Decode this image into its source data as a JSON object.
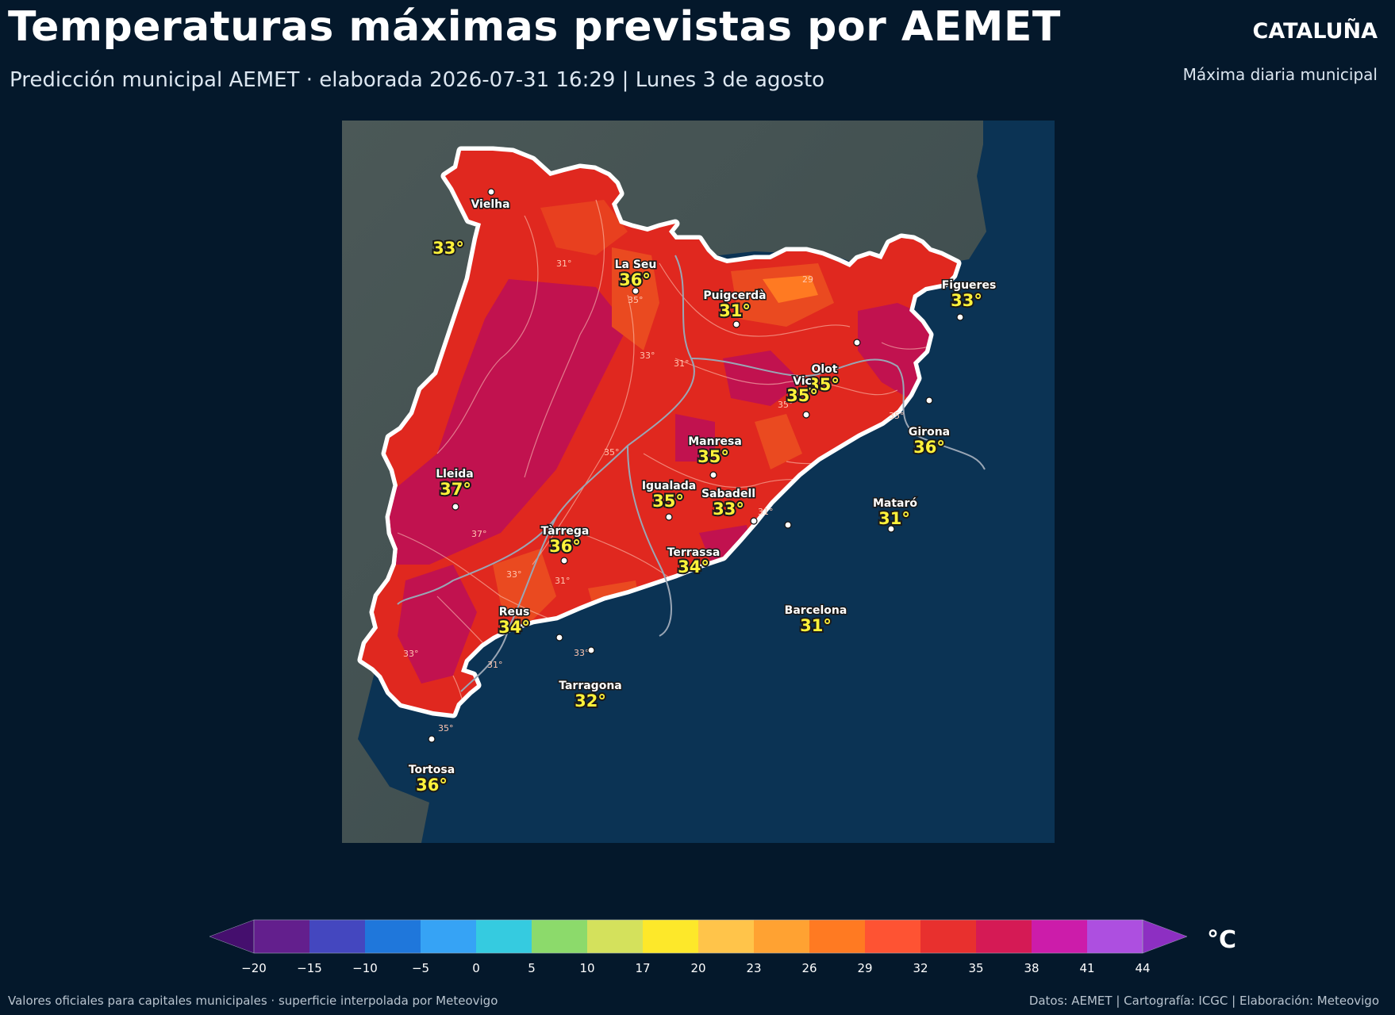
{
  "header": {
    "title": "Temperaturas máximas previstas por AEMET",
    "subtitle": "Predicción municipal AEMET · elaborada 2026-07-31 16:29  |  Lunes 3 de agosto",
    "region": "CATALUÑA",
    "region_sub": "Máxima diaria municipal"
  },
  "map": {
    "cities": [
      {
        "name": "Vielha",
        "temp": "33°"
      },
      {
        "name": "La Seu",
        "temp": "36°"
      },
      {
        "name": "Puigcerdà",
        "temp": "31°"
      },
      {
        "name": "Figueres",
        "temp": "33°"
      },
      {
        "name": "Olot",
        "temp": "35°"
      },
      {
        "name": "Vic",
        "temp": "35°"
      },
      {
        "name": "Girona",
        "temp": "36°"
      },
      {
        "name": "Manresa",
        "temp": "35°"
      },
      {
        "name": "Lleida",
        "temp": "37°"
      },
      {
        "name": "Igualada",
        "temp": "35°"
      },
      {
        "name": "Sabadell",
        "temp": "33°"
      },
      {
        "name": "Mataró",
        "temp": "31°"
      },
      {
        "name": "Tàrrega",
        "temp": "36°"
      },
      {
        "name": "Terrassa",
        "temp": "34°"
      },
      {
        "name": "Reus",
        "temp": "34°"
      },
      {
        "name": "Barcelona",
        "temp": "31°"
      },
      {
        "name": "Tarragona",
        "temp": "32°"
      },
      {
        "name": "Tortosa",
        "temp": "36°"
      }
    ],
    "contour_labels": [
      "31°",
      "35°",
      "33°",
      "31°",
      "35°",
      "35°",
      "35°",
      "37°",
      "33°",
      "31°",
      "31°",
      "33°",
      "31°",
      "35°",
      "33°",
      "29"
    ]
  },
  "colorbar": {
    "unit": "°C",
    "ticks": [
      "−20",
      "−15",
      "−10",
      "−5",
      "0",
      "5",
      "10",
      "17",
      "20",
      "23",
      "26",
      "29",
      "32",
      "35",
      "38",
      "41",
      "44"
    ],
    "colors": [
      "#631f8d",
      "#4447bf",
      "#1f77db",
      "#36a3f5",
      "#35cbe0",
      "#8cda6b",
      "#d4e15c",
      "#fde82a",
      "#ffc44a",
      "#ffa232",
      "#ff7a22",
      "#fe5333",
      "#e8302e",
      "#d51a55",
      "#cc1caa",
      "#ad4fe0"
    ],
    "low_color": "#450f6e",
    "high_color": "#8d2fc2"
  },
  "footer": {
    "left": "Valores oficiales para capitales municipales · superficie interpolada por Meteovigo",
    "right": "Datos: AEMET | Cartografía: ICGC | Elaboración: Meteovigo"
  }
}
